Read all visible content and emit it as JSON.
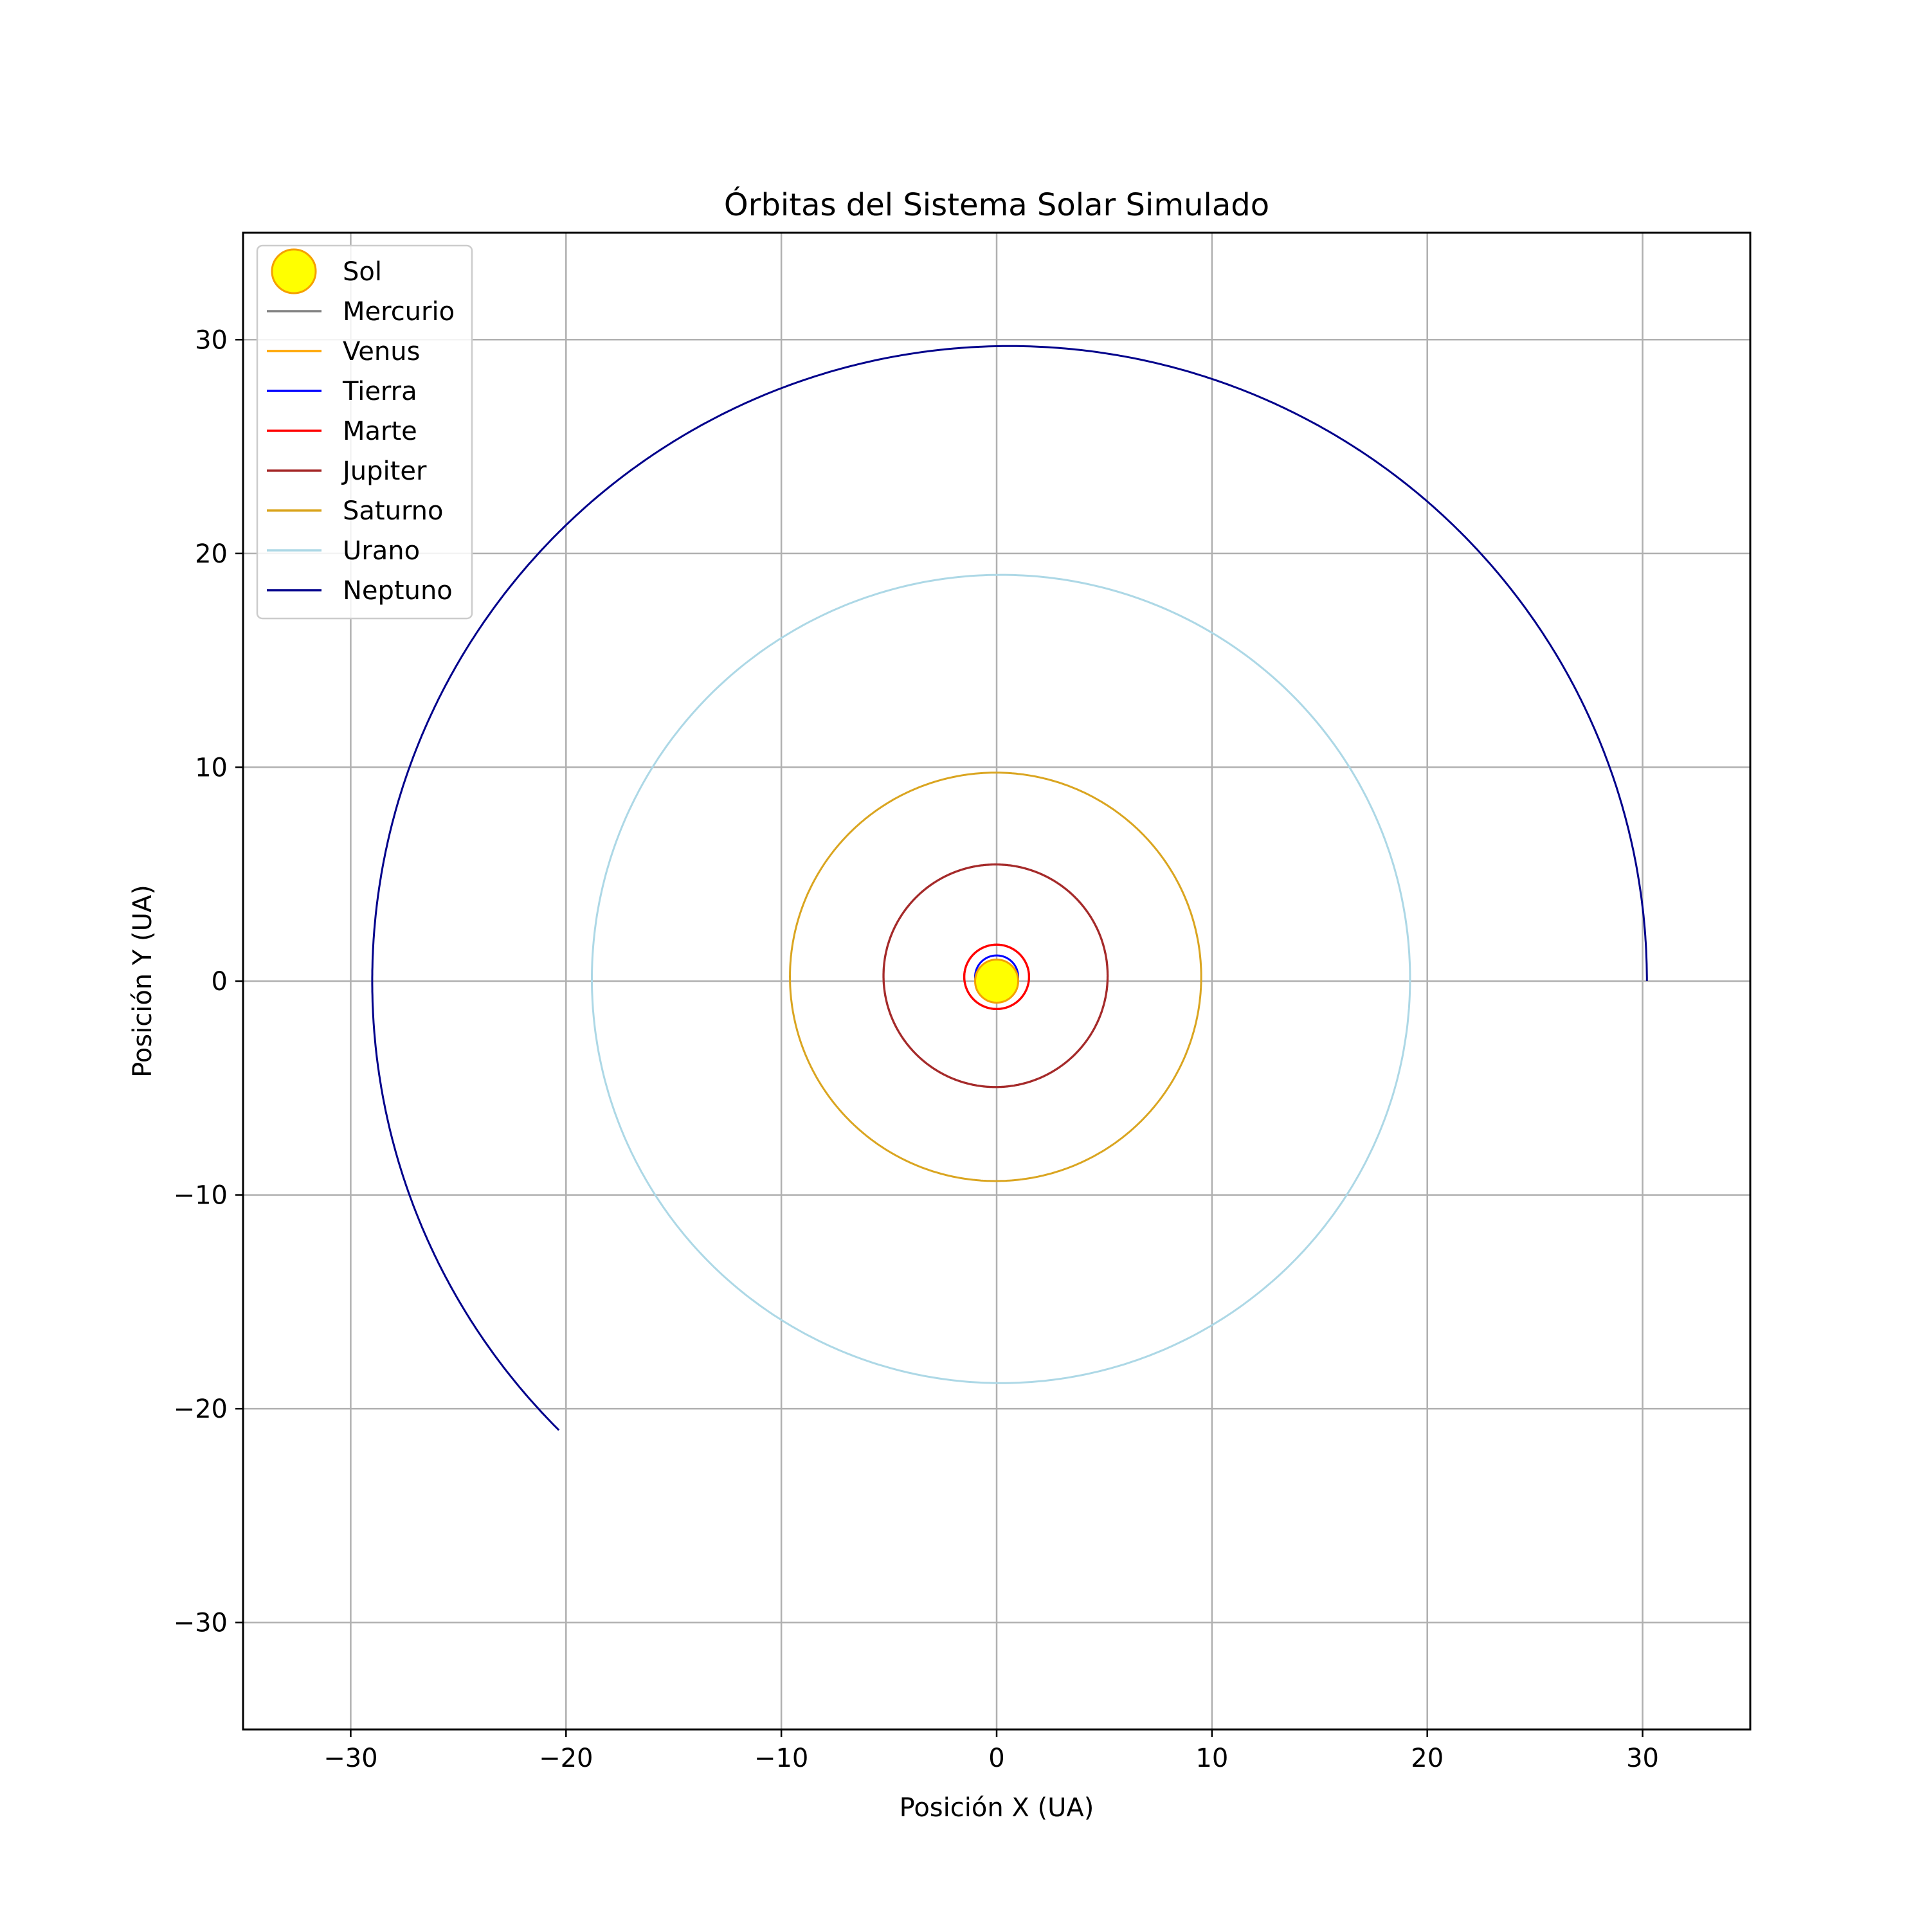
{
  "chart_data": {
    "type": "line",
    "title": "Órbitas del Sistema Solar Simulado",
    "xlabel": "Posición X (UA)",
    "ylabel": "Posición Y (UA)",
    "xlim": [
      -35,
      35
    ],
    "ylim": [
      -35,
      35
    ],
    "xticks": [
      -30,
      -20,
      -10,
      0,
      10,
      20,
      30
    ],
    "yticks": [
      -30,
      -20,
      -10,
      0,
      10,
      20,
      30
    ],
    "xtick_labels": [
      "−30",
      "−20",
      "−10",
      "0",
      "10",
      "20",
      "30"
    ],
    "ytick_labels": [
      "−30",
      "−20",
      "−10",
      "0",
      "10",
      "20",
      "30"
    ],
    "grid": true,
    "legend_position": "top-left",
    "sun": {
      "name": "Sol",
      "x": 0,
      "y": 0,
      "radius": 1.0,
      "color": "#ffff00",
      "edge_color": "#f5a000"
    },
    "series": [
      {
        "name": "Mercurio",
        "color": "#808080",
        "x_center": 0.0,
        "y_center": 0.0,
        "radius_x": 0.39,
        "radius_y": 0.39,
        "start_angle_deg": 0,
        "end_angle_deg": 360,
        "turns": 1
      },
      {
        "name": "Venus",
        "color": "#ffa500",
        "x_center": 0.0,
        "y_center": 0.1,
        "radius_x": 0.72,
        "radius_y": 0.72,
        "start_angle_deg": 0,
        "end_angle_deg": 360,
        "turns": 1
      },
      {
        "name": "Tierra",
        "color": "#0000ff",
        "x_center": 0.0,
        "y_center": 0.2,
        "radius_x": 1.0,
        "radius_y": 1.0,
        "start_angle_deg": 0,
        "end_angle_deg": 360,
        "turns": 1
      },
      {
        "name": "Marte",
        "color": "#ff0000",
        "x_center": 0.0,
        "y_center": 0.2,
        "radius_x": 1.5,
        "radius_y": 1.5,
        "start_angle_deg": 0,
        "end_angle_deg": 360,
        "turns": 3
      },
      {
        "name": "Jupiter",
        "color": "#a52a2a",
        "x_center": -0.05,
        "y_center": 0.25,
        "radius_x": 5.2,
        "radius_y": 5.2,
        "start_angle_deg": 0,
        "end_angle_deg": 360,
        "turns": 2
      },
      {
        "name": "Saturno",
        "color": "#daa520",
        "x_center": -0.05,
        "y_center": 0.2,
        "radius_x": 9.55,
        "radius_y": 9.55,
        "start_angle_deg": 0,
        "end_angle_deg": 410,
        "turns": 1
      },
      {
        "name": "Urano",
        "color": "#add8e6",
        "x_center": 0.2,
        "y_center": 0.1,
        "radius_x": 19.0,
        "radius_y": 18.9,
        "start_angle_deg": 0,
        "end_angle_deg": 435,
        "turns": 1
      },
      {
        "name": "Neptuno",
        "color": "#00008b",
        "x_center": 0.6,
        "y_center": 0.0,
        "radius_x": 29.6,
        "radius_y": 29.7,
        "start_angle_deg": 0,
        "end_angle_deg": 225,
        "turns": 1
      }
    ]
  }
}
